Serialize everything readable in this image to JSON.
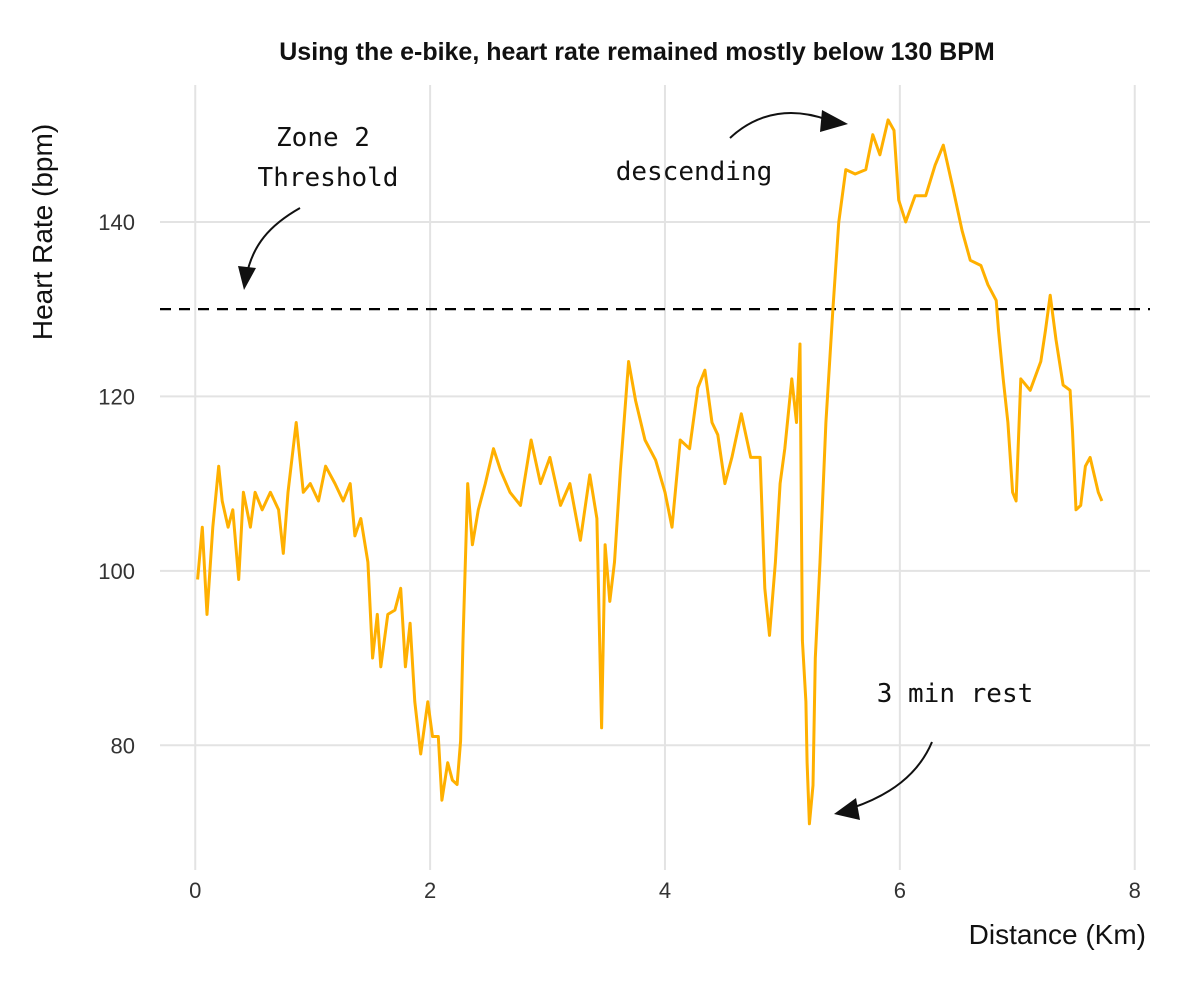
{
  "chart_data": {
    "type": "line",
    "title": "Using the e-bike, heart rate remained mostly below 130 BPM",
    "xlabel": "Distance (Km)",
    "ylabel": "Heart Rate (bpm)",
    "xlim": [
      -0.3,
      8.13
    ],
    "ylim": [
      65.7,
      155.7
    ],
    "xticks": [
      0,
      2,
      4,
      6,
      8
    ],
    "yticks": [
      80,
      100,
      120,
      140
    ],
    "grid": true,
    "line_color": "#FFB000",
    "threshold": {
      "value": 130,
      "style": "dashed",
      "color": "#000000"
    },
    "annotations": [
      {
        "text": [
          "Zone 2",
          "Threshold"
        ]
      },
      {
        "text": [
          "descending"
        ]
      },
      {
        "text": [
          "3 min rest"
        ]
      }
    ],
    "x": [
      0.02,
      0.06,
      0.1,
      0.15,
      0.2,
      0.23,
      0.28,
      0.32,
      0.37,
      0.41,
      0.47,
      0.51,
      0.57,
      0.64,
      0.71,
      0.75,
      0.79,
      0.86,
      0.92,
      0.98,
      1.05,
      1.11,
      1.19,
      1.26,
      1.32,
      1.36,
      1.41,
      1.47,
      1.51,
      1.55,
      1.58,
      1.64,
      1.7,
      1.75,
      1.79,
      1.83,
      1.87,
      1.92,
      1.98,
      2.02,
      2.07,
      2.1,
      2.15,
      2.19,
      2.23,
      2.26,
      2.28,
      2.32,
      2.36,
      2.41,
      2.47,
      2.54,
      2.6,
      2.68,
      2.77,
      2.86,
      2.94,
      3.02,
      3.11,
      3.19,
      3.28,
      3.36,
      3.42,
      3.46,
      3.49,
      3.53,
      3.57,
      3.62,
      3.69,
      3.75,
      3.83,
      3.92,
      4.0,
      4.06,
      4.13,
      4.21,
      4.28,
      4.34,
      4.4,
      4.45,
      4.51,
      4.57,
      4.65,
      4.73,
      4.81,
      4.85,
      4.89,
      4.94,
      4.98,
      5.02,
      5.08,
      5.12,
      5.15,
      5.17,
      5.2,
      5.21,
      5.23,
      5.26,
      5.28,
      5.32,
      5.37,
      5.43,
      5.48,
      5.54,
      5.62,
      5.71,
      5.77,
      5.83,
      5.9,
      5.95,
      5.99,
      6.05,
      6.13,
      6.22,
      6.3,
      6.37,
      6.45,
      6.53,
      6.6,
      6.69,
      6.75,
      6.82,
      6.84,
      6.88,
      6.92,
      6.96,
      6.99,
      7.03,
      7.11,
      7.2,
      7.24,
      7.28,
      7.33,
      7.39,
      7.45,
      7.47,
      7.5,
      7.54,
      7.58,
      7.62,
      7.69,
      7.72
    ],
    "values": [
      99,
      105,
      95,
      105,
      112,
      108,
      105,
      107,
      99,
      109,
      105,
      109,
      107,
      109,
      107,
      102,
      109,
      117,
      109,
      110,
      108,
      112,
      110,
      108,
      110,
      104,
      106,
      101,
      90,
      95,
      89,
      95,
      95.5,
      98,
      89,
      94,
      85,
      79,
      85,
      81,
      81,
      73.7,
      78,
      76,
      75.5,
      80.5,
      92,
      110,
      103,
      107,
      110,
      114,
      111.5,
      109,
      107.5,
      115,
      110,
      113,
      107.5,
      110,
      103.5,
      111,
      106,
      82,
      103,
      96.5,
      101,
      111.5,
      124,
      119.5,
      115,
      112.7,
      109,
      105,
      115,
      114,
      121,
      123,
      117,
      115.6,
      110,
      113,
      118,
      113,
      113,
      98,
      92.6,
      101,
      110,
      114,
      122,
      117,
      126,
      92,
      85,
      78,
      71,
      75.4,
      90,
      101,
      117,
      130,
      140,
      146,
      145.5,
      146,
      150,
      147.7,
      151.7,
      150.5,
      142.5,
      140,
      143,
      143,
      146.5,
      148.8,
      144,
      139,
      135.6,
      135,
      132.8,
      131,
      127.6,
      122,
      117,
      109,
      108,
      122,
      120.7,
      124,
      127.6,
      131.6,
      126.5,
      121.3,
      120.7,
      116,
      107,
      107.5,
      112,
      113,
      109,
      108
    ]
  }
}
